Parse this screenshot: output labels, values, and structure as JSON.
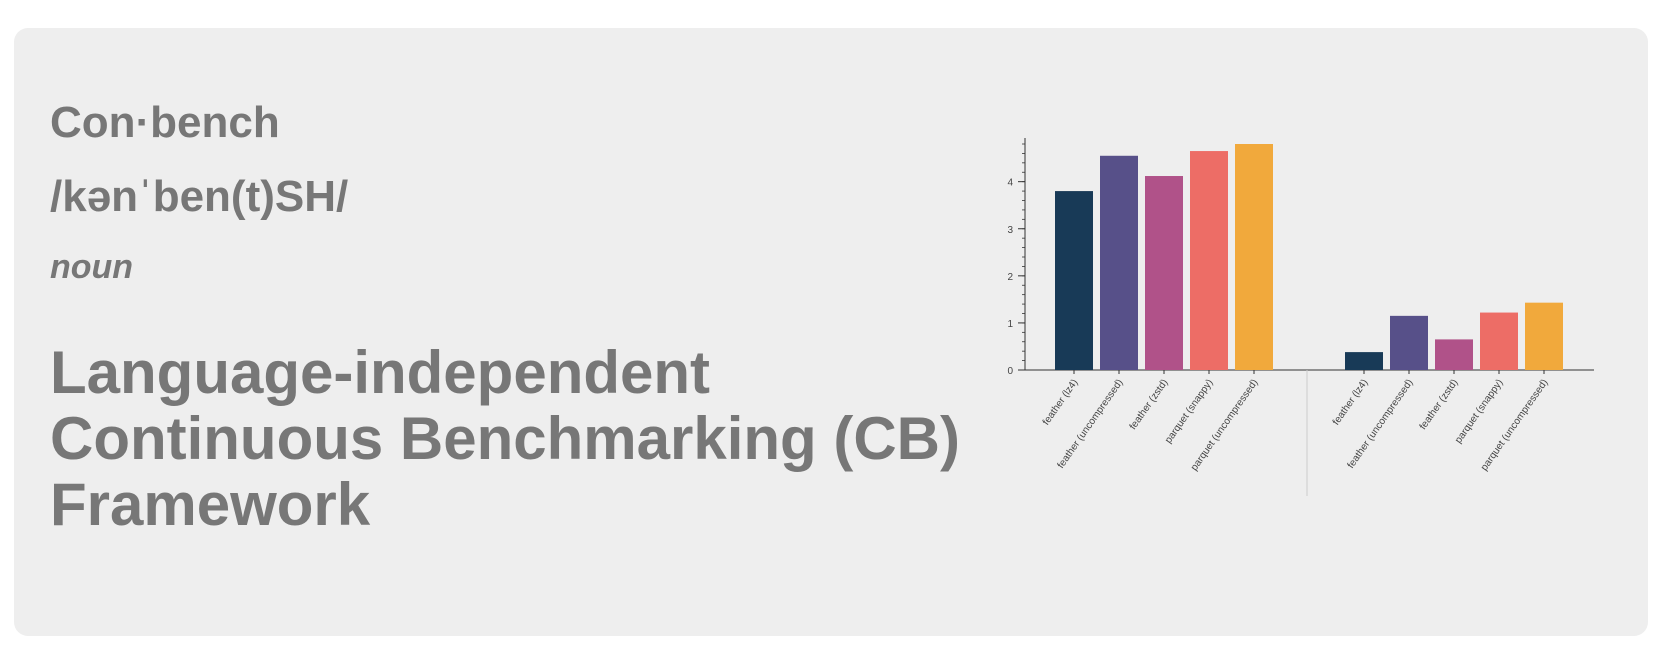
{
  "headword": "Con·bench",
  "pronunciation": "/kənˈben(t)SH/",
  "part_of_speech": "noun",
  "definition_lines": [
    "Language-independent",
    "Continuous Benchmarking (CB)",
    "Framework"
  ],
  "chart_data": {
    "type": "bar",
    "title": "",
    "xlabel": "",
    "ylabel": "",
    "ylim": [
      0,
      4.8
    ],
    "y_ticks": [
      0,
      1,
      2,
      3,
      4
    ],
    "grid": false,
    "groups": [
      {
        "categories": [
          "feather (lz4)",
          "feather (uncompressed)",
          "feather (zstd)",
          "parquet (snappy)",
          "parquet (uncompressed)"
        ],
        "values": [
          3.8,
          4.55,
          4.12,
          4.65,
          4.8
        ]
      },
      {
        "categories": [
          "feather (lz4)",
          "feather (uncompressed)",
          "feather (zstd)",
          "parquet (snappy)",
          "parquet (uncompressed)"
        ],
        "values": [
          0.38,
          1.15,
          0.65,
          1.22,
          1.43
        ]
      }
    ],
    "colors": [
      "#183a57",
      "#575089",
      "#b05289",
      "#ed6d66",
      "#f1a93c"
    ]
  }
}
